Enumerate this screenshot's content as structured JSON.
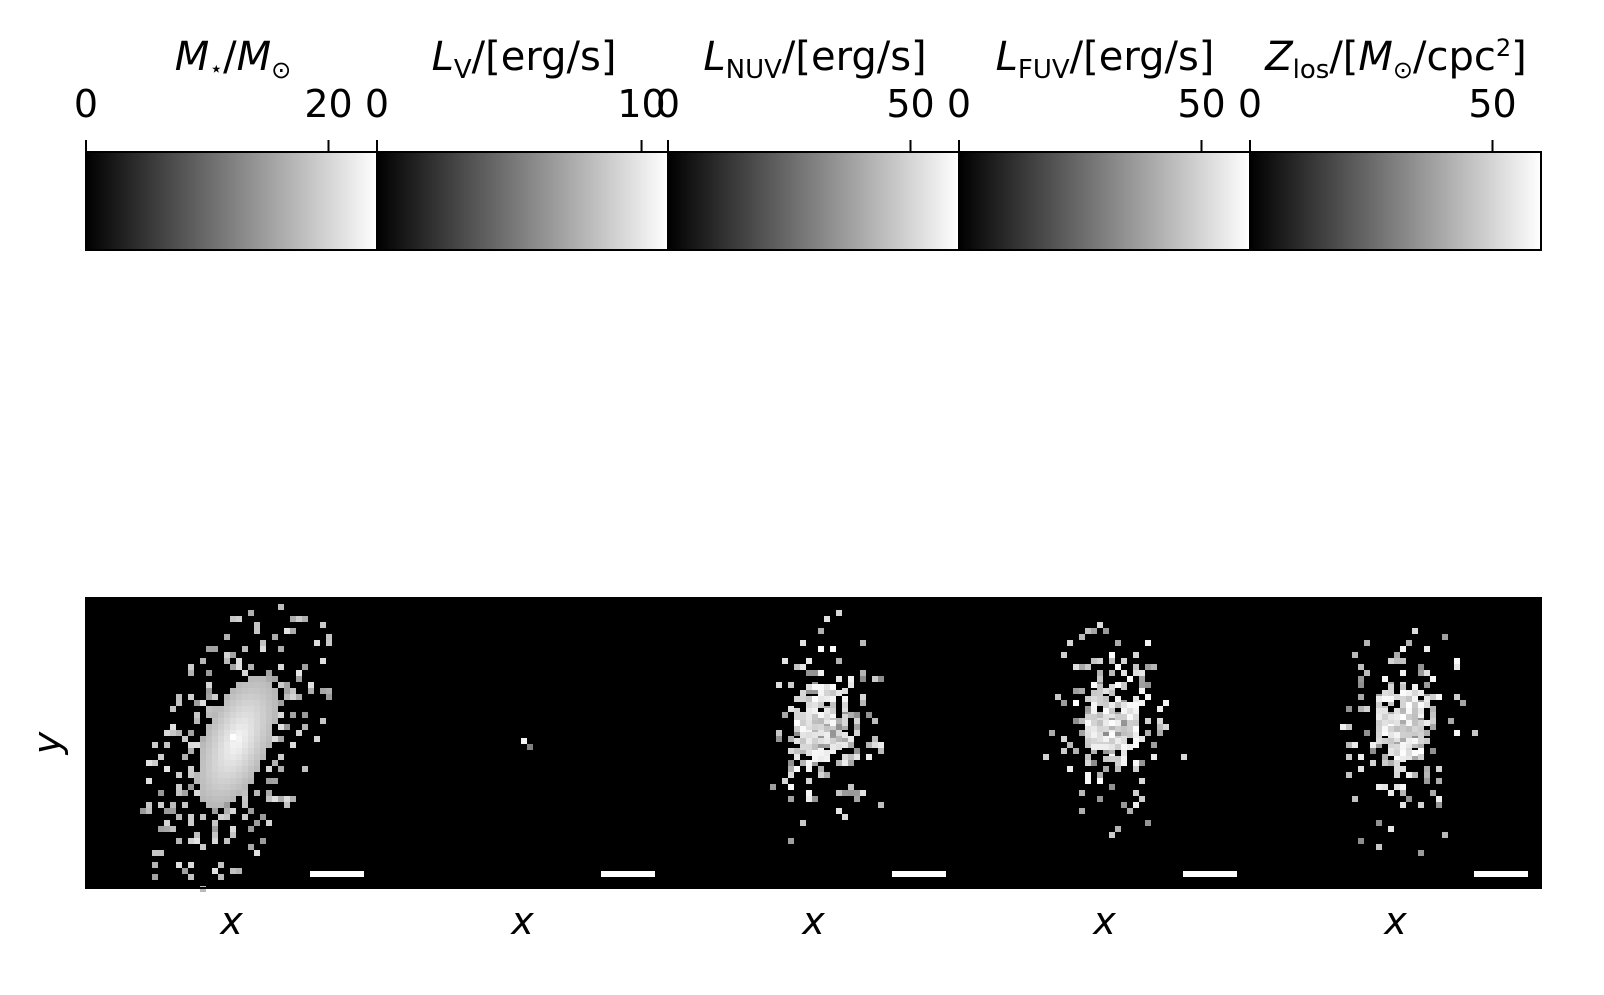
{
  "figure": {
    "y_label": "y",
    "x_label": "x"
  },
  "chart_data": [
    {
      "type": "heatmap",
      "panel": "stellar-mass",
      "colorbar_title": "M⋆/M⊙",
      "colorbar_range": [
        0,
        24
      ],
      "colorbar_ticks": [
        0,
        20
      ],
      "colormap": "gray",
      "xlabel": "x",
      "ylabel": "y",
      "scale_bar": true,
      "distribution": "smooth elongated blob, peak near center-left"
    },
    {
      "type": "heatmap",
      "panel": "v-band-luminosity",
      "colorbar_title": "LV/[erg/s]",
      "colorbar_range": [
        0,
        11
      ],
      "colorbar_ticks": [
        0,
        10
      ],
      "colormap": "gray",
      "xlabel": "x",
      "scale_bar": true,
      "distribution": "single bright point source"
    },
    {
      "type": "heatmap",
      "panel": "nuv-luminosity",
      "colorbar_title": "LNUV/[erg/s]",
      "colorbar_range": [
        0,
        60
      ],
      "colorbar_ticks": [
        0,
        50
      ],
      "colormap": "gray",
      "xlabel": "x",
      "scale_bar": true,
      "distribution": "scattered bright pixels"
    },
    {
      "type": "heatmap",
      "panel": "fuv-luminosity",
      "colorbar_title": "LFUV/[erg/s]",
      "colorbar_range": [
        0,
        60
      ],
      "colorbar_ticks": [
        0,
        50
      ],
      "colormap": "gray",
      "xlabel": "x",
      "scale_bar": true,
      "distribution": "scattered bright pixels"
    },
    {
      "type": "heatmap",
      "panel": "metal-surface-density",
      "colorbar_title": "Zlos/[M⊙/cpc2]",
      "colorbar_range": [
        0,
        60
      ],
      "colorbar_ticks": [
        0,
        50
      ],
      "colormap": "gray",
      "xlabel": "x",
      "scale_bar": true,
      "distribution": "scattered bright pixels"
    }
  ],
  "colors": {
    "background": "#ffffff",
    "axes": "#000000",
    "map_background": "#000000",
    "scale_bar": "#ffffff"
  }
}
